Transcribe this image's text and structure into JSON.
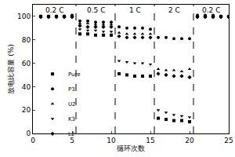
{
  "chart_data": {
    "type": "scatter",
    "x_label": "循环次数",
    "y_label": "放电比容量 (%)",
    "x": [
      1,
      2,
      3,
      4,
      5,
      6,
      7,
      8,
      9,
      10,
      11,
      12,
      13,
      14,
      15,
      16,
      17,
      18,
      19,
      20,
      21,
      22,
      23,
      24,
      25
    ],
    "xlim": [
      0,
      25
    ],
    "xticks": [
      0,
      5,
      10,
      15,
      20,
      25
    ],
    "ylim": [
      0,
      110
    ],
    "yticks": [
      0,
      20,
      40,
      60,
      80,
      100
    ],
    "legend": "left",
    "dividers": [
      5.5,
      10.5,
      15.5,
      20.5
    ],
    "annotations": [
      {
        "text": "0.2 C",
        "x": 2.75
      },
      {
        "text": "0.5 C",
        "x": 8
      },
      {
        "text": "1 C",
        "x": 13
      },
      {
        "text": "2 C",
        "x": 18
      },
      {
        "text": "0.2 C",
        "x": 22.75
      }
    ],
    "series": [
      {
        "name": "Pure",
        "color": "#000000",
        "marker": "square",
        "values": [
          100,
          100,
          100,
          100,
          100,
          85,
          85,
          84,
          84,
          84,
          51,
          50,
          49,
          49,
          49,
          13,
          12,
          11,
          11,
          10,
          100,
          100,
          100,
          100,
          100
        ]
      },
      {
        "name": "P3",
        "color": "#000000",
        "marker": "circle",
        "values": [
          100,
          100,
          100,
          100,
          101,
          96,
          96,
          95,
          95,
          95,
          91,
          90,
          90,
          90,
          89,
          82,
          82,
          81,
          81,
          81,
          101,
          101,
          101,
          100,
          100
        ]
      },
      {
        "name": "U2",
        "color": "#000000",
        "marker": "triangle-up",
        "values": [
          100,
          100,
          100,
          100,
          100,
          94,
          94,
          93,
          93,
          93,
          86,
          85,
          85,
          85,
          85,
          55,
          54,
          54,
          53,
          55,
          100,
          100,
          100,
          100,
          100
        ]
      },
      {
        "name": "K3",
        "color": "#000000",
        "marker": "triangle-down",
        "values": [
          99,
          99,
          99,
          99,
          99,
          89,
          88,
          88,
          87,
          87,
          62,
          61,
          60,
          60,
          59,
          20,
          18,
          16,
          15,
          14,
          99,
          99,
          99,
          99,
          99
        ]
      },
      {
        "name": "L2",
        "color": "#000000",
        "marker": "diamond",
        "values": [
          100,
          100,
          100,
          100,
          100,
          92,
          91,
          91,
          91,
          91,
          83,
          82,
          82,
          82,
          82,
          51,
          50,
          49,
          49,
          48,
          100,
          100,
          100,
          100,
          100
        ]
      }
    ]
  }
}
